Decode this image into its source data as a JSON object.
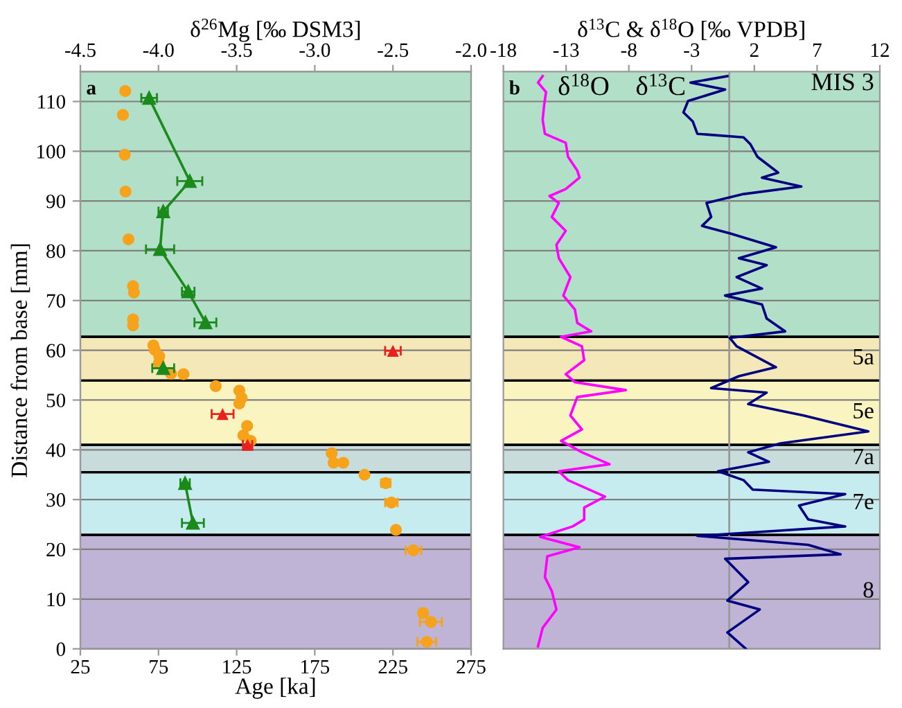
{
  "chart_data": [
    {
      "type": "scatter",
      "xlabel": "Age [ka]",
      "ylabel": "Distance from base [mm]",
      "x2label": "δ$^{26}$Mg [‰ DSM3]",
      "xlim": [
        25,
        275
      ],
      "xticks": [
        25,
        75,
        125,
        175,
        225,
        275
      ],
      "x2lim": [
        -4.5,
        -2.0
      ],
      "x2ticks": [
        {
          "value": -4.5,
          "label": "-4.5"
        },
        {
          "value": -4.0,
          "label": "-4.0"
        },
        {
          "value": -3.5,
          "label": "-3.5"
        },
        {
          "value": -3.0,
          "label": "-3.0"
        },
        {
          "value": -2.5,
          "label": "-2.5"
        },
        {
          "value": -2.0,
          "label": "-2.0"
        }
      ],
      "ylim": [
        0,
        116
      ],
      "yticks": [
        0,
        10,
        20,
        30,
        40,
        50,
        60,
        70,
        80,
        90,
        100,
        110
      ],
      "grid": "y",
      "annotations": [
        "a"
      ],
      "bands": [
        {
          "axis": "y",
          "from": 0,
          "to": 22.9,
          "color": "#c0b4d6"
        },
        {
          "axis": "y",
          "from": 22.9,
          "to": 35.5,
          "color": "#c6ecf0"
        },
        {
          "axis": "y",
          "from": 35.5,
          "to": 41.0,
          "color": "#c9dcdc"
        },
        {
          "axis": "y",
          "from": 41.0,
          "to": 53.9,
          "color": "#faf4c0"
        },
        {
          "axis": "y",
          "from": 53.9,
          "to": 62.7,
          "color": "#f5e8b8"
        },
        {
          "axis": "y",
          "from": 62.7,
          "to": 116,
          "color": "#b2dfc8"
        }
      ],
      "series": [
        {
          "type": "scatter",
          "marker": "circle",
          "color": "#f7a21b",
          "x": [
            53.7,
            52.2,
            53.4,
            53.9,
            55.8,
            58.7,
            59.3,
            58.7,
            58.7,
            71.7,
            72.6,
            75.5,
            75.2,
            83.0,
            91.0,
            111.6,
            126.7,
            128.2,
            126.7,
            131.7,
            129.3,
            134.0,
            185.8,
            187.0,
            193.2,
            206.8,
            220.4,
            224.0,
            226.9,
            238.1,
            244.3,
            249.3,
            246.6
          ],
          "values": [
            112.1,
            107.3,
            99.3,
            91.9,
            82.3,
            72.9,
            71.6,
            66.2,
            65.0,
            61.0,
            60.1,
            58.8,
            57.4,
            55.3,
            55.2,
            52.8,
            51.9,
            50.4,
            49.3,
            44.8,
            42.9,
            41.8,
            39.3,
            37.4,
            37.4,
            35.0,
            33.3,
            29.4,
            23.9,
            19.8,
            7.2,
            5.4,
            1.4
          ],
          "xerrors": [
            null,
            null,
            null,
            null,
            null,
            null,
            null,
            null,
            null,
            null,
            null,
            null,
            null,
            null,
            null,
            null,
            null,
            null,
            null,
            null,
            null,
            null,
            null,
            null,
            null,
            null,
            3,
            4,
            null,
            5,
            null,
            7,
            6
          ]
        },
        {
          "type": "line",
          "axis": "x2",
          "marker": "triangle",
          "color": "#1a8a1a",
          "x": [
            -4.06,
            -3.8,
            -3.97,
            -3.99,
            -3.81,
            -3.7,
            null,
            -3.97,
            null,
            -3.83,
            -3.78
          ],
          "values": [
            110.7,
            94.0,
            87.9,
            80.3,
            71.8,
            65.6,
            null,
            56.4,
            null,
            33.3,
            25.3
          ],
          "xerrors": [
            0.05,
            0.08,
            0.03,
            0.09,
            0.04,
            0.07,
            null,
            0.07,
            null,
            0.03,
            0.07
          ]
        },
        {
          "type": "scatter",
          "axis": "x2",
          "marker": "triangle",
          "color": "#e8201e",
          "x": [
            -2.5,
            -3.59,
            -3.43
          ],
          "values": [
            59.9,
            47.2,
            41.0
          ],
          "xerrors": [
            0.05,
            0.07,
            0.03
          ]
        }
      ]
    },
    {
      "type": "line",
      "xlabel": "δ$^{13}$C & δ$^{18}$O [‰ VPDB]",
      "tick_labels": "x",
      "xlim": [
        -18,
        12
      ],
      "xticks": [
        -18,
        -13,
        -8,
        -3,
        2,
        7,
        12
      ],
      "ylim": [
        0,
        116
      ],
      "yticks": [
        0,
        10,
        20,
        30,
        40,
        50,
        60,
        70,
        80,
        90,
        100,
        110
      ],
      "grid": "y",
      "annotations": [
        "b"
      ],
      "ref_lines": [
        {
          "axis": "x",
          "value": 0,
          "color": "#999999"
        }
      ],
      "bands": [
        {
          "axis": "y",
          "from": 0,
          "to": 22.9,
          "color": "#c0b4d6",
          "label": "8"
        },
        {
          "axis": "y",
          "from": 22.9,
          "to": 35.5,
          "color": "#c6ecf0",
          "label": "7e"
        },
        {
          "axis": "y",
          "from": 35.5,
          "to": 41.0,
          "color": "#c9dcdc",
          "label": "7a"
        },
        {
          "axis": "y",
          "from": 41.0,
          "to": 53.9,
          "color": "#faf4c0",
          "label": "5e"
        },
        {
          "axis": "y",
          "from": 53.9,
          "to": 62.7,
          "color": "#f5e8b8",
          "label": "5a"
        },
        {
          "axis": "y",
          "from": 62.7,
          "to": 116,
          "color": "#b2dfc8",
          "label": "MIS 3"
        }
      ],
      "series": [
        {
          "name": "δ$^{18}$O",
          "color": "#ff00ff",
          "x": [
            -14.87,
            -15.24,
            -14.6,
            -14.76,
            -14.87,
            -14.69,
            -13.03,
            -12.85,
            -12.11,
            -11.93,
            -13.03,
            -14.32,
            -13.58,
            -14.14,
            -13.03,
            -13.77,
            -13.58,
            -12.66,
            -13.22,
            -12.3,
            -12.11,
            -11.0,
            -13.4,
            -11.74,
            -11.56,
            -13.03,
            -12.3,
            -8.25,
            -12.11,
            -12.66,
            -11.74,
            -13.4,
            -11.74,
            -9.54,
            -13.58,
            -12.85,
            -9.9,
            -11.56,
            -11.56,
            -12.48,
            -15.06,
            -11.93,
            -14.5,
            -14.69,
            -14.14,
            -13.77,
            -14.87,
            -15.24
          ],
          "values": [
            115.1,
            113.8,
            111.9,
            109.1,
            106.3,
            103.5,
            101.7,
            98.9,
            96.1,
            94.7,
            92.4,
            91.0,
            89.6,
            86.8,
            84.0,
            81.2,
            78.5,
            74.7,
            71.0,
            68.2,
            65.5,
            63.8,
            62.7,
            60.8,
            58.0,
            55.2,
            53.6,
            52.0,
            50.6,
            46.9,
            44.1,
            41.8,
            39.5,
            37.1,
            35.7,
            33.9,
            30.6,
            28.4,
            26.0,
            24.6,
            22.5,
            20.4,
            18.6,
            14.4,
            11.6,
            7.9,
            4.2,
            0.5
          ]
        },
        {
          "name": "δ$^{13}$C",
          "color": "#000080",
          "x": [
            -0.15,
            -3.09,
            -0.33,
            -3.28,
            -3.65,
            -2.91,
            -2.54,
            1.14,
            1.69,
            2.24,
            3.9,
            2.61,
            5.74,
            1.14,
            -1.81,
            -1.44,
            -2.17,
            0.03,
            3.72,
            0.77,
            2.98,
            0.59,
            2.61,
            -0.33,
            2.61,
            2.98,
            4.45,
            0.03,
            0.59,
            3.72,
            0.77,
            -1.44,
            2.98,
            1.51,
            5.92,
            11.08,
            4.08,
            1.51,
            3.16,
            -0.89,
            1.14,
            1.87,
            9.24,
            5.56,
            6.29,
            9.24,
            -2.54,
            6.29,
            8.87,
            -0.33,
            1.51,
            -0.15,
            2.43,
            -0.15,
            1.33
          ],
          "values": [
            115.1,
            113.8,
            112.4,
            110.1,
            107.8,
            106.0,
            103.5,
            102.8,
            101.4,
            98.9,
            95.7,
            94.7,
            92.9,
            91.4,
            89.6,
            86.8,
            85.0,
            83.5,
            80.7,
            78.5,
            77.1,
            74.7,
            72.4,
            71.0,
            69.2,
            66.4,
            63.8,
            62.5,
            60.8,
            56.6,
            54.8,
            52.4,
            51.5,
            49.2,
            46.9,
            43.7,
            41.3,
            39.5,
            37.6,
            35.7,
            33.9,
            32.0,
            31.1,
            28.8,
            26.0,
            24.6,
            22.7,
            20.9,
            19.0,
            18.1,
            13.4,
            9.7,
            7.9,
            3.3,
            0.0
          ]
        }
      ]
    }
  ]
}
